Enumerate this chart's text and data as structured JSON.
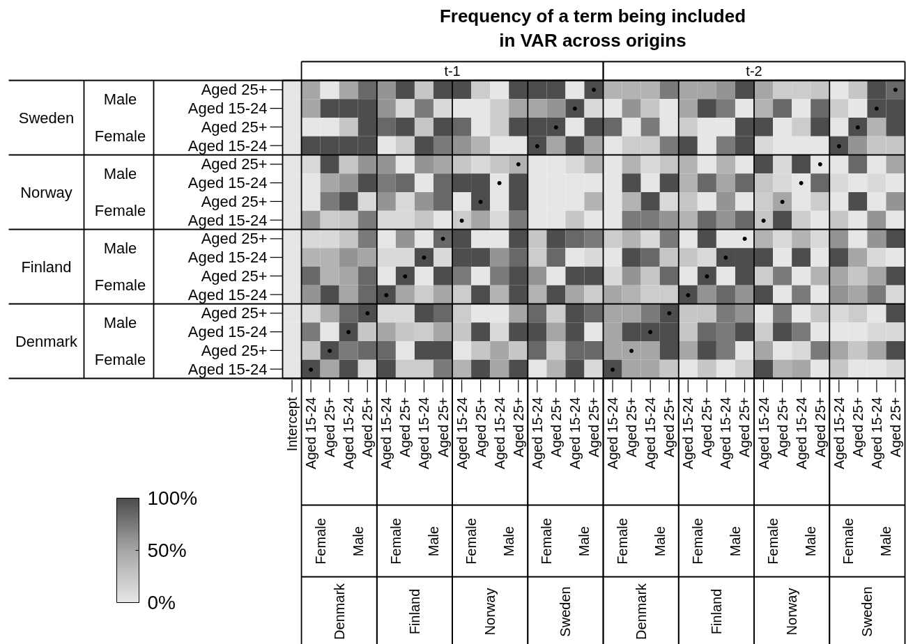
{
  "chart_data": {
    "type": "heatmap",
    "title": "Frequency of a term being included\nin VAR across origins",
    "categories": [
      [
        "Intercept"
      ],
      [
        "t-1",
        "Denmark",
        "Female",
        "Aged 15-24"
      ],
      [
        null,
        null,
        null,
        "Aged 25+"
      ],
      [
        null,
        null,
        "Male",
        "Aged 15-24"
      ],
      [
        null,
        null,
        null,
        "Aged 25+"
      ],
      [
        null,
        "Finland",
        "Female",
        "Aged 15-24"
      ],
      [
        null,
        null,
        null,
        "Aged 25+"
      ],
      [
        null,
        null,
        "Male",
        "Aged 15-24"
      ],
      [
        null,
        null,
        null,
        "Aged 25+"
      ],
      [
        null,
        "Norway",
        "Female",
        "Aged 15-24"
      ],
      [
        null,
        null,
        null,
        "Aged 25+"
      ],
      [
        null,
        null,
        "Male",
        "Aged 15-24"
      ],
      [
        null,
        null,
        null,
        "Aged 25+"
      ],
      [
        null,
        "Sweden",
        "Female",
        "Aged 15-24"
      ],
      [
        null,
        null,
        null,
        "Aged 25+"
      ],
      [
        null,
        null,
        "Male",
        "Aged 15-24"
      ],
      [
        null,
        null,
        null,
        "Aged 25+"
      ],
      [
        "t-2",
        "Denmark",
        "Female",
        "Aged 15-24"
      ],
      [
        null,
        null,
        null,
        "Aged 25+"
      ],
      [
        null,
        null,
        "Male",
        "Aged 15-24"
      ],
      [
        null,
        null,
        null,
        "Aged 25+"
      ],
      [
        null,
        "Finland",
        "Female",
        "Aged 15-24"
      ],
      [
        null,
        null,
        null,
        "Aged 25+"
      ],
      [
        null,
        null,
        "Male",
        "Aged 15-24"
      ],
      [
        null,
        null,
        null,
        "Aged 25+"
      ],
      [
        null,
        "Norway",
        "Female",
        "Aged 15-24"
      ],
      [
        null,
        null,
        null,
        "Aged 25+"
      ],
      [
        null,
        null,
        "Male",
        "Aged 15-24"
      ],
      [
        null,
        null,
        null,
        "Aged 25+"
      ],
      [
        null,
        "Sweden",
        "Female",
        "Aged 15-24"
      ],
      [
        null,
        null,
        null,
        "Aged 25+"
      ],
      [
        null,
        null,
        "Male",
        "Aged 15-24"
      ],
      [
        null,
        null,
        null,
        "Aged 25+"
      ]
    ],
    "y_categories": [
      [
        "Sweden",
        "Male",
        "Aged 25+"
      ],
      [
        null,
        null,
        "Aged 15-24"
      ],
      [
        null,
        "Female",
        "Aged 25+"
      ],
      [
        null,
        null,
        "Aged 15-24"
      ],
      [
        "Norway",
        "Male",
        "Aged 25+"
      ],
      [
        null,
        null,
        "Aged 15-24"
      ],
      [
        null,
        "Female",
        "Aged 25+"
      ],
      [
        null,
        null,
        "Aged 15-24"
      ],
      [
        "Finland",
        "Male",
        "Aged 25+"
      ],
      [
        null,
        null,
        "Aged 15-24"
      ],
      [
        null,
        "Female",
        "Aged 25+"
      ],
      [
        null,
        null,
        "Aged 15-24"
      ],
      [
        "Denmark",
        "Male",
        "Aged 25+"
      ],
      [
        null,
        null,
        "Aged 15-24"
      ],
      [
        null,
        "Female",
        "Aged 25+"
      ],
      [
        null,
        null,
        "Aged 15-24"
      ]
    ],
    "cells": [
      [
        0,
        50,
        0,
        50,
        85,
        60,
        100,
        25,
        100,
        100,
        20,
        0,
        100,
        100,
        100,
        0,
        100,
        40,
        40,
        40,
        75,
        50,
        50,
        60,
        100,
        50,
        20,
        20,
        25,
        0,
        25,
        100,
        85
      ],
      [
        0,
        50,
        100,
        100,
        100,
        60,
        10,
        75,
        10,
        0,
        0,
        20,
        50,
        50,
        60,
        100,
        10,
        0,
        60,
        25,
        0,
        50,
        100,
        75,
        0,
        40,
        85,
        0,
        85,
        20,
        0,
        100,
        100
      ],
      [
        0,
        0,
        0,
        25,
        100,
        85,
        100,
        25,
        100,
        85,
        0,
        20,
        100,
        100,
        100,
        0,
        100,
        85,
        0,
        75,
        0,
        20,
        0,
        0,
        100,
        100,
        0,
        20,
        100,
        0,
        100,
        40,
        100
      ],
      [
        0,
        100,
        100,
        100,
        100,
        0,
        20,
        100,
        75,
        60,
        40,
        0,
        0,
        100,
        50,
        100,
        50,
        0,
        20,
        20,
        75,
        100,
        0,
        75,
        100,
        10,
        0,
        0,
        0,
        100,
        60,
        25,
        25
      ],
      [
        0,
        10,
        100,
        25,
        60,
        60,
        0,
        60,
        50,
        25,
        10,
        25,
        40,
        0,
        0,
        10,
        40,
        0,
        40,
        10,
        25,
        40,
        0,
        40,
        0,
        100,
        10,
        100,
        0,
        0,
        85,
        0,
        50
      ],
      [
        0,
        0,
        50,
        60,
        100,
        75,
        85,
        0,
        85,
        100,
        100,
        0,
        100,
        0,
        0,
        0,
        0,
        0,
        100,
        0,
        100,
        40,
        85,
        50,
        85,
        25,
        10,
        0,
        85,
        10,
        0,
        10,
        0
      ],
      [
        0,
        0,
        75,
        100,
        10,
        60,
        10,
        60,
        85,
        0,
        100,
        0,
        100,
        0,
        0,
        0,
        40,
        0,
        40,
        100,
        10,
        25,
        0,
        60,
        0,
        20,
        50,
        0,
        20,
        0,
        100,
        0,
        60
      ],
      [
        0,
        60,
        20,
        25,
        75,
        10,
        10,
        25,
        0,
        20,
        50,
        10,
        75,
        0,
        0,
        25,
        0,
        0,
        75,
        75,
        60,
        40,
        85,
        60,
        85,
        25,
        100,
        20,
        0,
        25,
        0,
        60,
        0
      ],
      [
        0,
        10,
        10,
        25,
        75,
        0,
        60,
        0,
        85,
        100,
        0,
        0,
        100,
        25,
        100,
        85,
        75,
        20,
        40,
        10,
        75,
        0,
        100,
        0,
        0,
        40,
        10,
        40,
        10,
        60,
        0,
        60,
        100
      ],
      [
        0,
        40,
        40,
        60,
        50,
        10,
        10,
        100,
        10,
        100,
        100,
        60,
        85,
        20,
        85,
        0,
        10,
        0,
        100,
        85,
        25,
        25,
        10,
        100,
        100,
        100,
        0,
        100,
        0,
        100,
        50,
        10,
        0
      ],
      [
        0,
        85,
        40,
        50,
        85,
        0,
        100,
        0,
        100,
        75,
        0,
        75,
        100,
        60,
        0,
        100,
        100,
        10,
        60,
        25,
        85,
        0,
        100,
        0,
        100,
        20,
        75,
        0,
        40,
        50,
        25,
        50,
        100
      ],
      [
        0,
        60,
        100,
        50,
        85,
        100,
        50,
        20,
        50,
        20,
        100,
        40,
        100,
        40,
        100,
        50,
        20,
        50,
        40,
        20,
        20,
        100,
        60,
        85,
        60,
        100,
        0,
        75,
        0,
        60,
        50,
        75,
        10
      ],
      [
        0,
        10,
        50,
        85,
        100,
        10,
        10,
        100,
        85,
        20,
        0,
        0,
        50,
        85,
        20,
        100,
        85,
        50,
        50,
        75,
        100,
        25,
        25,
        75,
        60,
        0,
        75,
        0,
        25,
        10,
        20,
        0,
        100
      ],
      [
        0,
        75,
        0,
        100,
        25,
        50,
        25,
        20,
        50,
        25,
        100,
        10,
        100,
        100,
        50,
        100,
        0,
        50,
        100,
        100,
        100,
        25,
        85,
        75,
        100,
        20,
        100,
        75,
        0,
        0,
        0,
        10,
        10
      ],
      [
        0,
        25,
        100,
        75,
        85,
        85,
        0,
        100,
        100,
        0,
        25,
        50,
        25,
        85,
        20,
        85,
        85,
        50,
        50,
        50,
        100,
        50,
        100,
        75,
        0,
        50,
        0,
        10,
        75,
        50,
        25,
        50,
        100
      ],
      [
        0,
        100,
        50,
        100,
        10,
        100,
        20,
        20,
        75,
        40,
        100,
        50,
        100,
        0,
        40,
        100,
        10,
        100,
        50,
        50,
        25,
        0,
        25,
        0,
        20,
        100,
        40,
        50,
        0,
        25,
        0,
        0,
        10
      ]
    ],
    "cell_labels": [
      [
        null,
        null,
        null,
        null,
        null,
        null,
        null,
        null,
        null,
        null,
        null,
        null,
        null,
        null,
        null,
        null,
        "•",
        null,
        null,
        null,
        null,
        null,
        null,
        null,
        null,
        null,
        null,
        null,
        null,
        null,
        null,
        null,
        "•"
      ],
      [
        null,
        null,
        null,
        null,
        null,
        null,
        null,
        null,
        null,
        null,
        null,
        null,
        null,
        null,
        null,
        "•",
        null,
        null,
        null,
        null,
        null,
        null,
        null,
        null,
        null,
        null,
        null,
        null,
        null,
        null,
        null,
        "•",
        null
      ],
      [
        null,
        null,
        null,
        null,
        null,
        null,
        null,
        null,
        null,
        null,
        null,
        null,
        null,
        null,
        "•",
        null,
        null,
        null,
        null,
        null,
        null,
        null,
        null,
        null,
        null,
        null,
        null,
        null,
        null,
        null,
        "•",
        null,
        null
      ],
      [
        null,
        null,
        null,
        null,
        null,
        null,
        null,
        null,
        null,
        null,
        null,
        null,
        null,
        "•",
        null,
        null,
        null,
        null,
        null,
        null,
        null,
        null,
        null,
        null,
        null,
        null,
        null,
        null,
        null,
        "•",
        null,
        null,
        null
      ],
      [
        null,
        null,
        null,
        null,
        null,
        null,
        null,
        null,
        null,
        null,
        null,
        null,
        "•",
        null,
        null,
        null,
        null,
        null,
        null,
        null,
        null,
        null,
        null,
        null,
        null,
        null,
        null,
        null,
        "•",
        null,
        null,
        null,
        null
      ],
      [
        null,
        null,
        null,
        null,
        null,
        null,
        null,
        null,
        null,
        null,
        null,
        "•",
        null,
        null,
        null,
        null,
        null,
        null,
        null,
        null,
        null,
        null,
        null,
        null,
        null,
        null,
        null,
        "•",
        null,
        null,
        null,
        null,
        null
      ],
      [
        null,
        null,
        null,
        null,
        null,
        null,
        null,
        null,
        null,
        null,
        "•",
        null,
        null,
        null,
        null,
        null,
        null,
        null,
        null,
        null,
        null,
        null,
        null,
        null,
        null,
        null,
        "•",
        null,
        null,
        null,
        null,
        null,
        null
      ],
      [
        null,
        null,
        null,
        null,
        null,
        null,
        null,
        null,
        null,
        "•",
        null,
        null,
        null,
        null,
        null,
        null,
        null,
        null,
        null,
        null,
        null,
        null,
        null,
        null,
        null,
        "•",
        null,
        null,
        null,
        null,
        null,
        null,
        null
      ],
      [
        null,
        null,
        null,
        null,
        null,
        null,
        null,
        null,
        "•",
        null,
        null,
        null,
        null,
        null,
        null,
        null,
        null,
        null,
        null,
        null,
        null,
        null,
        null,
        null,
        "•",
        null,
        null,
        null,
        null,
        null,
        null,
        null,
        null
      ],
      [
        null,
        null,
        null,
        null,
        null,
        null,
        null,
        "•",
        null,
        null,
        null,
        null,
        null,
        null,
        null,
        null,
        null,
        null,
        null,
        null,
        null,
        null,
        null,
        "•",
        null,
        null,
        null,
        null,
        null,
        null,
        null,
        null,
        null
      ],
      [
        null,
        null,
        null,
        null,
        null,
        null,
        "•",
        null,
        null,
        null,
        null,
        null,
        null,
        null,
        null,
        null,
        null,
        null,
        null,
        null,
        null,
        null,
        "•",
        null,
        null,
        null,
        null,
        null,
        null,
        null,
        null,
        null,
        null
      ],
      [
        null,
        null,
        null,
        null,
        null,
        "•",
        null,
        null,
        null,
        null,
        null,
        null,
        null,
        null,
        null,
        null,
        null,
        null,
        null,
        null,
        null,
        "•",
        null,
        null,
        null,
        null,
        null,
        null,
        null,
        null,
        null,
        null,
        null
      ],
      [
        null,
        null,
        null,
        null,
        "•",
        null,
        null,
        null,
        null,
        null,
        null,
        null,
        null,
        null,
        null,
        null,
        null,
        null,
        null,
        null,
        "•",
        null,
        null,
        null,
        null,
        null,
        null,
        null,
        null,
        null,
        null,
        null,
        null
      ],
      [
        null,
        null,
        null,
        "•",
        null,
        null,
        null,
        null,
        null,
        null,
        null,
        null,
        null,
        null,
        null,
        null,
        null,
        null,
        null,
        "•",
        null,
        null,
        null,
        null,
        null,
        null,
        null,
        null,
        null,
        null,
        null,
        null,
        null
      ],
      [
        null,
        null,
        "•",
        null,
        null,
        null,
        null,
        null,
        null,
        null,
        null,
        null,
        null,
        null,
        null,
        null,
        null,
        null,
        "•",
        null,
        null,
        null,
        null,
        null,
        null,
        null,
        null,
        null,
        null,
        null,
        null,
        null,
        null
      ],
      [
        null,
        "•",
        null,
        null,
        null,
        null,
        null,
        null,
        null,
        null,
        null,
        null,
        null,
        null,
        null,
        null,
        null,
        "•",
        null,
        null,
        null,
        null,
        null,
        null,
        null,
        null,
        null,
        null,
        null,
        null,
        null,
        null,
        null
      ]
    ],
    "clim": [
      0,
      100
    ],
    "cticks": [
      {
        "value": 0,
        "label": "0%"
      },
      {
        "value": 50,
        "label": "50%"
      },
      {
        "value": 100,
        "label": "100%"
      }
    ]
  }
}
